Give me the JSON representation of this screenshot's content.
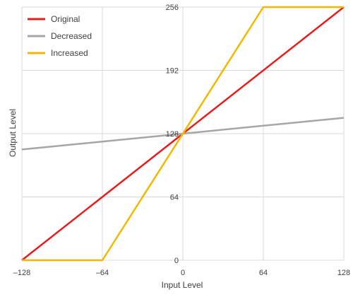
{
  "chart_data": {
    "type": "line",
    "title": "",
    "xlabel": "Input Level",
    "ylabel": "Output Level",
    "xlim": [
      -128,
      128
    ],
    "ylim": [
      0,
      256
    ],
    "xticks": [
      -128,
      -64,
      0,
      64,
      128
    ],
    "yticks": [
      0,
      64,
      128,
      192,
      256
    ],
    "grid": true,
    "legend_position": "top-left",
    "series": [
      {
        "name": "Original",
        "color": "#e81c1c",
        "points": [
          [
            -128,
            0
          ],
          [
            128,
            256
          ]
        ]
      },
      {
        "name": "Decreased",
        "color": "#a6a6a6",
        "points": [
          [
            -128,
            112
          ],
          [
            128,
            144
          ]
        ]
      },
      {
        "name": "Increased",
        "color": "#f4b800",
        "points": [
          [
            -128,
            0
          ],
          [
            -64,
            0
          ],
          [
            64,
            256
          ],
          [
            128,
            256
          ]
        ]
      }
    ]
  }
}
